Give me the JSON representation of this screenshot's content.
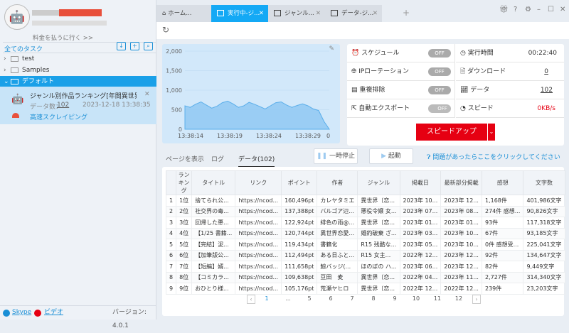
{
  "sidebar": {
    "pay_link": "料金を払うに行く >>",
    "all_tasks": "全てのタスク",
    "folders": [
      {
        "label": "test",
        "expanded": false
      },
      {
        "label": "Samples",
        "expanded": false
      },
      {
        "label": "デフォルト",
        "expanded": true
      }
    ],
    "task": {
      "title": "ジャンル別作品ランキング[年間異世界〔恋...",
      "data_label": "データ数：",
      "data_count": "102",
      "timestamp": "2023-12-18 13:38:35",
      "mode": "高速スクレイピング"
    },
    "footer": {
      "skype": "Skype",
      "video": "ビデオ",
      "version": "バージョン: 4.0.1"
    }
  },
  "tabs": [
    {
      "label": "ホーム...",
      "icon": "home-icon"
    },
    {
      "label": "実行中-ジ...",
      "active": true
    },
    {
      "label": "ジャンル..."
    },
    {
      "label": "データ-ジ..."
    }
  ],
  "window_icons": [
    "gift-icon",
    "help-icon",
    "settings-icon",
    "minimize-icon",
    "maximize-icon",
    "close-icon"
  ],
  "stats": {
    "schedule": "スケジュール",
    "ip_rotation": "IPローテーション",
    "dedupe": "重複排除",
    "auto_export": "自動エクスポート",
    "off": "OFF",
    "run_time_label": "実行時間",
    "run_time": "00:22:40",
    "download_label": "ダウンロード",
    "download": "0",
    "data_label": "データ",
    "data": "102",
    "speed_label": "スピード",
    "speed": "0KB/s",
    "speedup": "スピードアップ"
  },
  "controls": {
    "view_page": "ページを表示",
    "log": "ログ",
    "data_tab": "データ(102)",
    "pause": "一時停止",
    "start": "起動",
    "help": "問題があったらここをクリックしてください"
  },
  "chart_data": {
    "type": "area",
    "x_ticks": [
      "13:38:14",
      "13:38:19",
      "13:38:24",
      "13:38:29"
    ],
    "y_ticks": [
      "0",
      "500",
      "1,000",
      "1,500",
      "2,000"
    ],
    "ylim": [
      0,
      2000
    ],
    "values": [
      600,
      560,
      640,
      700,
      620,
      540,
      590,
      680,
      720,
      650,
      560,
      600,
      690,
      640,
      580,
      520,
      600,
      680,
      700,
      620,
      560,
      610,
      650,
      600,
      520,
      480,
      200,
      0
    ]
  },
  "table": {
    "headers": [
      "",
      "ランキング",
      "タイトル",
      "リンク",
      "ポイント",
      "作者",
      "ジャンル",
      "掲載日",
      "最新部分掲載",
      "感想",
      "文字数"
    ],
    "rows": [
      [
        "1",
        "1位",
        "捨てられ公...",
        "https://ncod...",
        "160,496pt",
        "カレヤタミエ",
        "異世界〔恋...",
        "2023年 10...",
        "2023年 12...",
        "1,168件",
        "401,986文字"
      ],
      [
        "2",
        "2位",
        "社交界の毒...",
        "https://ncod...",
        "137,388pt",
        "バルゴア辺...",
        "悪役令嬢 女...",
        "2023年 07...",
        "2023年 08...",
        "274件 感想...",
        "90,826文字"
      ],
      [
        "3",
        "3位",
        "回帰した悪...",
        "https://ncod...",
        "122,924pt",
        "緋色の雨@...",
        "異世界〔恋...",
        "2023年 01...",
        "2023年 01...",
        "93件",
        "117,318文字"
      ],
      [
        "4",
        "4位",
        "【1/25 書籍...",
        "https://ncod...",
        "120,744pt",
        "異世界恋愛...",
        "婚約破棄 ざ...",
        "2023年 03...",
        "2023年 10...",
        "67件",
        "93,185文字"
      ],
      [
        "5",
        "5位",
        "【完結】泥...",
        "https://ncod...",
        "119,434pt",
        "書籍化",
        "R15 残酷な...",
        "2023年 05...",
        "2023年 10...",
        "0件 感想受...",
        "225,041文字"
      ],
      [
        "6",
        "6位",
        "【加筆版公...",
        "https://ncod...",
        "112,494pt",
        "ある日ふと...",
        "R15 女主...",
        "2022年 12...",
        "2023年 12...",
        "92件",
        "134,647文字"
      ],
      [
        "7",
        "7位",
        "【短編】婿...",
        "https://ncod...",
        "111,658pt",
        "鯨バッジ(...",
        "ほのぼの ハ...",
        "2023年 06...",
        "2023年 12...",
        "82件",
        "9,449文字"
      ],
      [
        "8",
        "8位",
        "【コミカラ...",
        "https://ncod...",
        "109,638pt",
        "豆田　麦",
        "異世界〔恋...",
        "2022年 04...",
        "2023年 11...",
        "2,727件",
        "314,340文字"
      ],
      [
        "9",
        "9位",
        "おひとり様...",
        "https://ncod...",
        "105,176pt",
        "荒瀬ヤヒロ",
        "異世界〔恋...",
        "2022年 12...",
        "2022年 12...",
        "239件",
        "23,203文字"
      ]
    ]
  },
  "pagination": {
    "pages": [
      "1",
      "...",
      "5",
      "6",
      "7",
      "8",
      "9",
      "10",
      "11",
      "12"
    ],
    "current": "1"
  }
}
